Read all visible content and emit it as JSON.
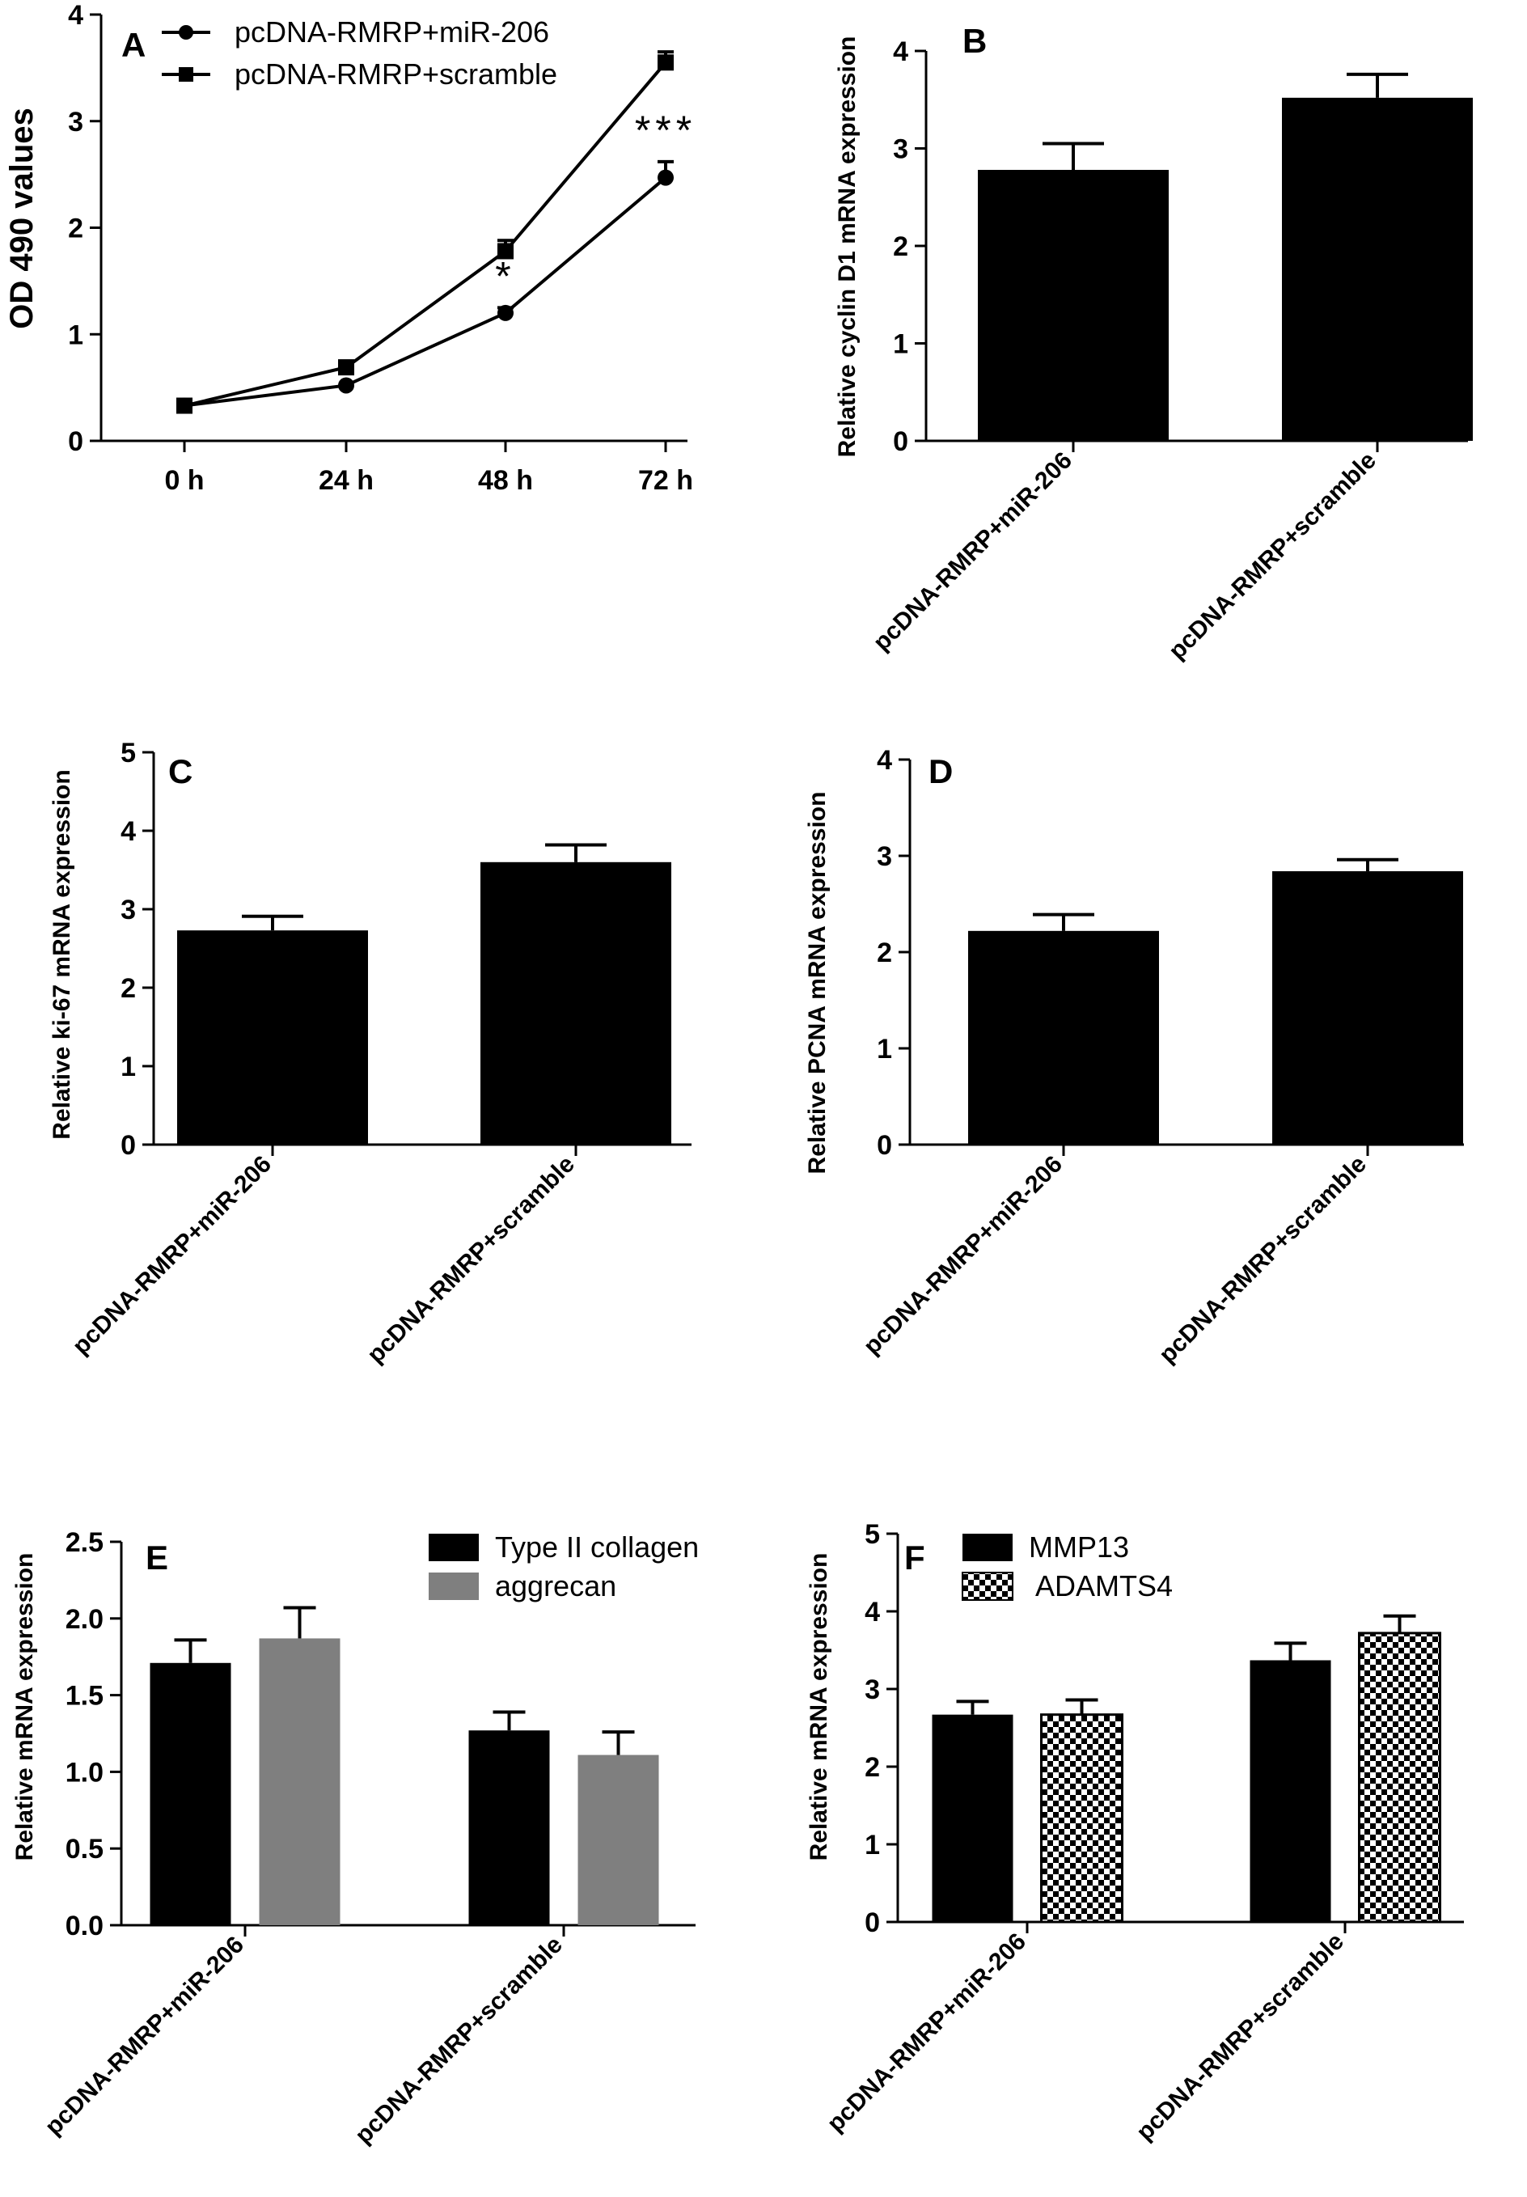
{
  "colors": {
    "black": "#000000",
    "gray": "#7f7f7f",
    "checker": "checkerboard-black-white"
  },
  "chart_data": [
    {
      "panel": "A",
      "type": "line",
      "ylabel": "OD 490 values",
      "xlabel": "",
      "categories": [
        "0 h",
        "24 h",
        "48 h",
        "72 h"
      ],
      "ylim": [
        0,
        4
      ],
      "yticks": [
        "0",
        "1",
        "2",
        "3",
        "4"
      ],
      "legend_position": "top-left",
      "series": [
        {
          "name": "pcDNA-RMRP+miR-206",
          "marker": "circle",
          "values": [
            0.33,
            0.52,
            1.2,
            2.47
          ],
          "errors": [
            0.03,
            0.03,
            0.05,
            0.15
          ]
        },
        {
          "name": "pcDNA-RMRP+scramble",
          "marker": "square",
          "values": [
            0.33,
            0.69,
            1.78,
            3.55
          ],
          "errors": [
            0.03,
            0.03,
            0.1,
            0.1
          ]
        }
      ],
      "annotations": [
        {
          "category": "48 h",
          "text": "*"
        },
        {
          "category": "72 h",
          "text": "***"
        }
      ]
    },
    {
      "panel": "B",
      "type": "bar",
      "ylabel": "Relative  cyclin D1 mRNA expression",
      "categories": [
        "pcDNA-RMRP+miR-206",
        "pcDNA-RMRP+scramble"
      ],
      "ylim": [
        0,
        4
      ],
      "yticks": [
        "0",
        "1",
        "2",
        "3",
        "4"
      ],
      "values": [
        2.78,
        3.52
      ],
      "errors": [
        0.27,
        0.24
      ]
    },
    {
      "panel": "C",
      "type": "bar",
      "ylabel": "Relative  ki-67 mRNA expression",
      "categories": [
        "pcDNA-RMRP+miR-206",
        "pcDNA-RMRP+scramble"
      ],
      "ylim": [
        0,
        5
      ],
      "yticks": [
        "0",
        "1",
        "2",
        "3",
        "4",
        "5"
      ],
      "values": [
        2.73,
        3.6
      ],
      "errors": [
        0.18,
        0.22
      ]
    },
    {
      "panel": "D",
      "type": "bar",
      "ylabel": "Relative  PCNA mRNA expression",
      "categories": [
        "pcDNA-RMRP+miR-206",
        "pcDNA-RMRP+scramble"
      ],
      "ylim": [
        0,
        4
      ],
      "yticks": [
        "0",
        "1",
        "2",
        "3",
        "4"
      ],
      "values": [
        2.22,
        2.84
      ],
      "errors": [
        0.17,
        0.12
      ]
    },
    {
      "panel": "E",
      "type": "bar",
      "ylabel": "Relative mRNA expression",
      "categories": [
        "pcDNA-RMRP+miR-206",
        "pcDNA-RMRP+scramble"
      ],
      "ylim": [
        0,
        2.5
      ],
      "yticks": [
        "0.0",
        "0.5",
        "1.0",
        "1.5",
        "2.0",
        "2.5"
      ],
      "legend_position": "top-right",
      "series": [
        {
          "name": "Type II collagen",
          "fill": "black",
          "values": [
            1.71,
            1.27
          ],
          "errors": [
            0.15,
            0.12
          ]
        },
        {
          "name": "aggrecan",
          "fill": "gray",
          "values": [
            1.87,
            1.11
          ],
          "errors": [
            0.2,
            0.15
          ]
        }
      ]
    },
    {
      "panel": "F",
      "type": "bar",
      "ylabel": "Relative mRNA expression",
      "categories": [
        "pcDNA-RMRP+miR-206",
        "pcDNA-RMRP+scramble"
      ],
      "ylim": [
        0,
        5
      ],
      "yticks": [
        "0",
        "1",
        "2",
        "3",
        "4",
        "5"
      ],
      "legend_position": "top-left",
      "series": [
        {
          "name": "MMP13",
          "fill": "black",
          "values": [
            2.67,
            3.37
          ],
          "errors": [
            0.17,
            0.22
          ]
        },
        {
          "name": " ADAMTS4",
          "fill": "checker",
          "values": [
            2.67,
            3.72
          ],
          "errors": [
            0.19,
            0.22
          ]
        }
      ]
    }
  ]
}
